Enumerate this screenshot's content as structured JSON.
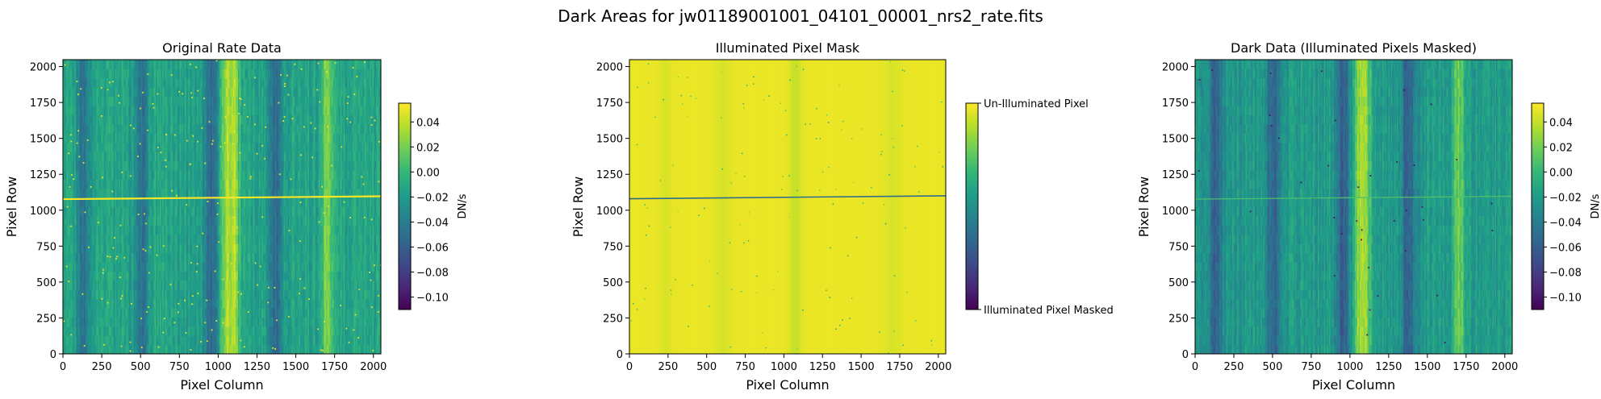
{
  "figure": {
    "suptitle": "Dark Areas for jw01189001001_04101_00001_nrs2_rate.fits"
  },
  "colors": {
    "viridis": [
      "#440154",
      "#482878",
      "#3e4a89",
      "#31688e",
      "#26828e",
      "#1f9e89",
      "#35b779",
      "#6ece58",
      "#b5de2b",
      "#fde725"
    ]
  },
  "chart_data": [
    {
      "type": "heatmap",
      "title": "Original Rate Data",
      "xlabel": "Pixel Column",
      "ylabel": "Pixel Row",
      "xlim": [
        0,
        2048
      ],
      "ylim": [
        0,
        2048
      ],
      "xticks": [
        0,
        250,
        500,
        750,
        1000,
        1250,
        1500,
        1750,
        2000
      ],
      "yticks": [
        0,
        250,
        500,
        750,
        1000,
        1250,
        1500,
        1750,
        2000
      ],
      "colormap": "viridis",
      "colorbar": {
        "label": "DN/s",
        "range": [
          -0.11,
          0.055
        ],
        "ticks": [
          0.04,
          0.02,
          0.0,
          -0.02,
          -0.04,
          -0.06,
          -0.08,
          -0.1
        ],
        "tick_labels": [
          "0.04",
          "0.02",
          "0.00",
          "−0.02",
          "−0.04",
          "−0.06",
          "−0.08",
          "−0.10"
        ]
      },
      "features": {
        "bright_trace_row": 1085,
        "bright_column_bands": [
          1050,
          1100,
          1700
        ],
        "dark_column_bands": [
          130,
          500,
          950,
          1370
        ]
      }
    },
    {
      "type": "heatmap",
      "title": "Illuminated Pixel Mask",
      "xlabel": "Pixel Column",
      "ylabel": "Pixel Row",
      "xlim": [
        0,
        2048
      ],
      "ylim": [
        0,
        2048
      ],
      "xticks": [
        0,
        250,
        500,
        750,
        1000,
        1250,
        1500,
        1750,
        2000
      ],
      "yticks": [
        0,
        250,
        500,
        750,
        1000,
        1250,
        1500,
        1750,
        2000
      ],
      "colormap": "viridis",
      "colorbar": {
        "label": "",
        "range": [
          0,
          1
        ],
        "ticks": [
          1,
          0
        ],
        "tick_labels": [
          "Un-Illuminated Pixel",
          "Illuminated Pixel Masked"
        ]
      },
      "features": {
        "masked_trace_row": 1085
      }
    },
    {
      "type": "heatmap",
      "title": "Dark Data (Illuminated Pixels Masked)",
      "xlabel": "Pixel Column",
      "ylabel": "Pixel Row",
      "xlim": [
        0,
        2048
      ],
      "ylim": [
        0,
        2048
      ],
      "xticks": [
        0,
        250,
        500,
        750,
        1000,
        1250,
        1500,
        1750,
        2000
      ],
      "yticks": [
        0,
        250,
        500,
        750,
        1000,
        1250,
        1500,
        1750,
        2000
      ],
      "colormap": "viridis",
      "colorbar": {
        "label": "DN/s",
        "range": [
          -0.11,
          0.055
        ],
        "ticks": [
          0.04,
          0.02,
          0.0,
          -0.02,
          -0.04,
          -0.06,
          -0.08,
          -0.1
        ],
        "tick_labels": [
          "0.04",
          "0.02",
          "0.00",
          "−0.02",
          "−0.04",
          "−0.06",
          "−0.08",
          "−0.10"
        ]
      },
      "features": {
        "faint_trace_row": 1085,
        "bright_column_bands": [
          1050,
          1100,
          1700
        ],
        "dark_column_bands": [
          130,
          500,
          950,
          1370
        ]
      }
    }
  ]
}
